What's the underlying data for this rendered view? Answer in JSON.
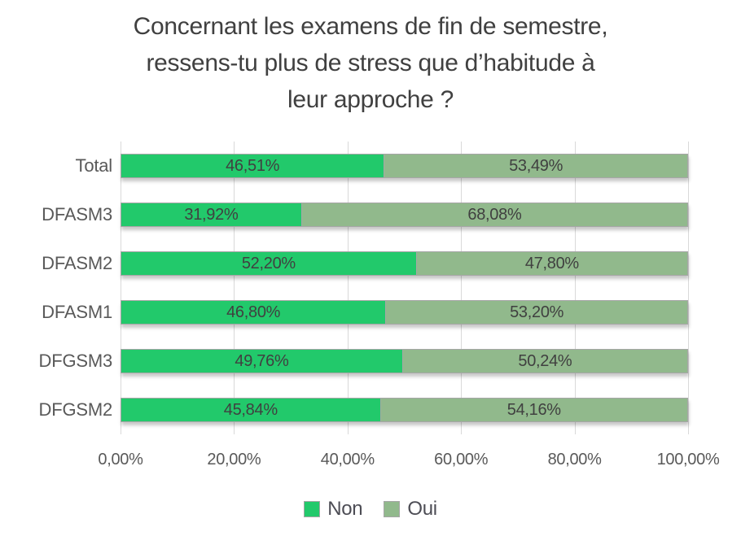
{
  "title_lines": [
    "Concernant les examens de fin de semestre,",
    "ressens-tu plus de stress que d’habitude à",
    "leur approche ?"
  ],
  "chart_data": {
    "type": "bar",
    "orientation": "horizontal",
    "stacked": true,
    "title": "Concernant les examens de fin de semestre, ressens-tu plus de stress que d’habitude à leur approche ?",
    "categories": [
      "Total",
      "DFASM3",
      "DFASM2",
      "DFASM1",
      "DFGSM3",
      "DFGSM2"
    ],
    "series": [
      {
        "name": "Non",
        "color": "#22C96B",
        "values": [
          46.51,
          31.92,
          52.2,
          46.8,
          49.76,
          45.84
        ],
        "labels": [
          "46,51%",
          "31,92%",
          "52,20%",
          "46,80%",
          "49,76%",
          "45,84%"
        ]
      },
      {
        "name": "Oui",
        "color": "#91B98C",
        "values": [
          53.49,
          68.08,
          47.8,
          53.2,
          50.24,
          54.16
        ],
        "labels": [
          "53,49%",
          "68,08%",
          "47,80%",
          "53,20%",
          "50,24%",
          "54,16%"
        ]
      }
    ],
    "x_ticks": [
      "0,00%",
      "20,00%",
      "40,00%",
      "60,00%",
      "80,00%",
      "100,00%"
    ],
    "xlim": [
      0,
      100
    ],
    "grid": true,
    "legend_position": "bottom",
    "colors": {
      "grid": "#D9D9D9",
      "bar_border": "#A6A6A6",
      "title_text": "#404040",
      "axis_text": "#595959",
      "data_label_text": "#404040",
      "background": "#FFFFFF"
    }
  }
}
